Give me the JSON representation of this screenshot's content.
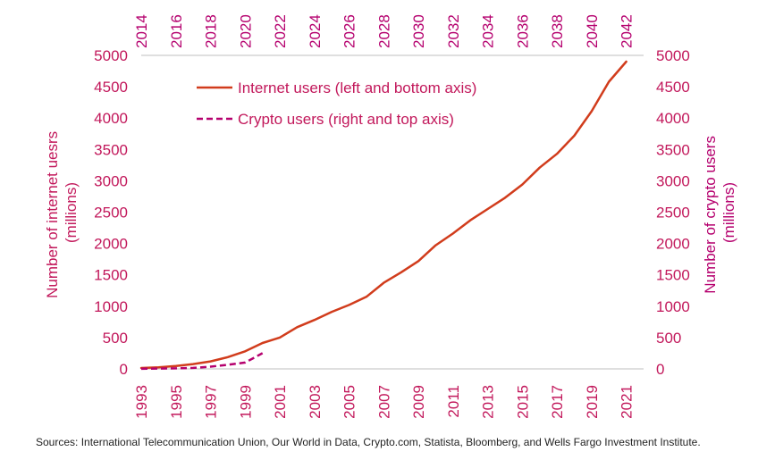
{
  "chart_data": {
    "type": "line",
    "source": "Sources: International Telecommunication Union, Our World in Data, Crypto.com, Statista, Bloomberg, and Wells Fargo Investment Institute.",
    "left_axis": {
      "label_line1": "Number of internet uesrs",
      "label_line2": "(millions)",
      "ylim": [
        0,
        5000
      ],
      "ticks": [
        0,
        500,
        1000,
        1500,
        2000,
        2500,
        3000,
        3500,
        4000,
        4500,
        5000
      ],
      "color": "#c2185b"
    },
    "right_axis": {
      "label_line1": "Number of crypto users",
      "label_line2": "(millions)",
      "ylim": [
        0,
        5000
      ],
      "ticks": [
        0,
        500,
        1000,
        1500,
        2000,
        2500,
        3000,
        3500,
        4000,
        4500,
        5000
      ],
      "color": "#c2185b"
    },
    "bottom_axis": {
      "xlim": [
        1993,
        2022
      ],
      "ticks": [
        "1993",
        "1995",
        "1997",
        "1999",
        "2001",
        "2003",
        "2005",
        "2007",
        "2009",
        "2011",
        "2013",
        "2015",
        "2017",
        "2019",
        "2021"
      ]
    },
    "top_axis": {
      "xlim": [
        2014,
        2043
      ],
      "ticks": [
        "2014",
        "2016",
        "2018",
        "2020",
        "2022",
        "2024",
        "2026",
        "2028",
        "2030",
        "2032",
        "2034",
        "2036",
        "2038",
        "2040",
        "2042"
      ],
      "color": "#b5006e"
    },
    "series": [
      {
        "name": "Internet users (left and bottom axis)",
        "axis": "bottom-left",
        "color": "#d13c1c",
        "style": "solid",
        "x": [
          1993,
          1994,
          1995,
          1996,
          1997,
          1998,
          1999,
          2000,
          2001,
          2002,
          2003,
          2004,
          2005,
          2006,
          2007,
          2008,
          2009,
          2010,
          2011,
          2012,
          2013,
          2014,
          2015,
          2016,
          2017,
          2018,
          2019,
          2020,
          2021
        ],
        "y": [
          14,
          25,
          45,
          77,
          120,
          188,
          280,
          413,
          500,
          665,
          780,
          910,
          1020,
          1150,
          1373,
          1540,
          1720,
          1971,
          2160,
          2370,
          2550,
          2730,
          2940,
          3210,
          3430,
          3720,
          4110,
          4580,
          4900
        ]
      },
      {
        "name": "Crypto users (right and top axis)",
        "axis": "top-right",
        "color": "#b5006e",
        "style": "dashed",
        "x": [
          2014,
          2015,
          2016,
          2017,
          2018,
          2019,
          2020,
          2021
        ],
        "y": [
          2,
          5,
          8,
          15,
          35,
          66,
          101,
          250
        ]
      }
    ],
    "legend_position": "top-left",
    "grid": false
  }
}
